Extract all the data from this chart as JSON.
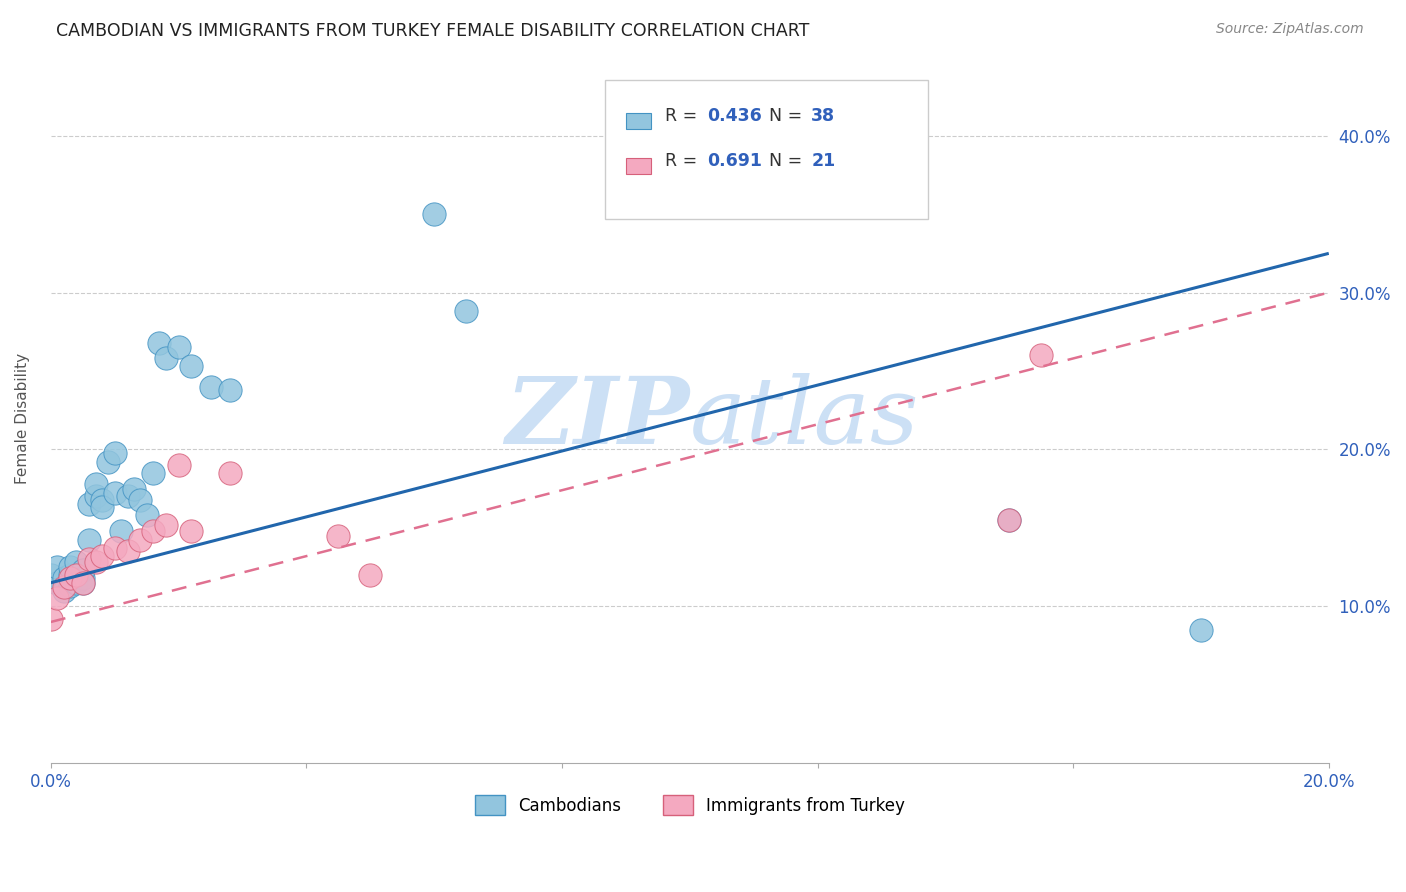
{
  "title": "CAMBODIAN VS IMMIGRANTS FROM TURKEY FEMALE DISABILITY CORRELATION CHART",
  "source": "Source: ZipAtlas.com",
  "ylabel": "Female Disability",
  "xlim": [
    0.0,
    0.2
  ],
  "ylim": [
    0.0,
    0.44
  ],
  "cambodian_color": "#92c5de",
  "cambodian_edge": "#4393c3",
  "turkey_color": "#f4a9c0",
  "turkey_edge": "#d6607a",
  "blue_line_color": "#2166ac",
  "pink_line_color": "#e07090",
  "watermark_color": "#cce0f5",
  "legend_label_cambodian": "Cambodians",
  "legend_label_turkey": "Immigrants from Turkey",
  "cam_x": [
    0.0,
    0.001,
    0.001,
    0.002,
    0.002,
    0.003,
    0.003,
    0.003,
    0.004,
    0.004,
    0.005,
    0.005,
    0.005,
    0.006,
    0.006,
    0.007,
    0.007,
    0.008,
    0.008,
    0.009,
    0.01,
    0.01,
    0.011,
    0.012,
    0.013,
    0.014,
    0.015,
    0.016,
    0.017,
    0.018,
    0.02,
    0.022,
    0.025,
    0.028,
    0.06,
    0.065,
    0.15,
    0.18
  ],
  "cam_y": [
    0.12,
    0.115,
    0.125,
    0.118,
    0.11,
    0.12,
    0.113,
    0.125,
    0.115,
    0.128,
    0.118,
    0.123,
    0.115,
    0.165,
    0.142,
    0.17,
    0.178,
    0.168,
    0.163,
    0.192,
    0.172,
    0.198,
    0.148,
    0.17,
    0.175,
    0.168,
    0.158,
    0.185,
    0.268,
    0.258,
    0.265,
    0.253,
    0.24,
    0.238,
    0.35,
    0.288,
    0.155,
    0.085
  ],
  "tur_x": [
    0.0,
    0.001,
    0.002,
    0.003,
    0.004,
    0.005,
    0.006,
    0.007,
    0.008,
    0.01,
    0.012,
    0.014,
    0.016,
    0.018,
    0.02,
    0.022,
    0.028,
    0.045,
    0.05,
    0.15,
    0.155
  ],
  "tur_y": [
    0.092,
    0.105,
    0.112,
    0.118,
    0.12,
    0.115,
    0.13,
    0.128,
    0.132,
    0.137,
    0.135,
    0.142,
    0.148,
    0.152,
    0.19,
    0.148,
    0.185,
    0.145,
    0.12,
    0.155,
    0.26
  ],
  "blue_line_x": [
    0.0,
    0.2
  ],
  "blue_line_y": [
    0.115,
    0.325
  ],
  "pink_line_x": [
    0.0,
    0.2
  ],
  "pink_line_y": [
    0.09,
    0.3
  ],
  "ytick_vals": [
    0.1,
    0.2,
    0.3,
    0.4
  ],
  "ytick_labels": [
    "10.0%",
    "20.0%",
    "30.0%",
    "40.0%"
  ],
  "xtick_vals": [
    0.0,
    0.04,
    0.08,
    0.12,
    0.16,
    0.2
  ],
  "xtick_left_label": "0.0%",
  "xtick_right_label": "20.0%"
}
